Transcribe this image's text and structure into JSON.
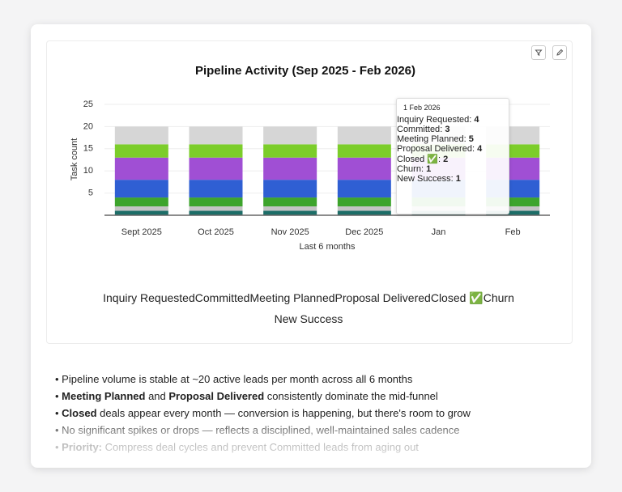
{
  "chart_data": {
    "type": "bar",
    "stacked": true,
    "title": "Pipeline Activity (Sep 2025 - Feb 2026)",
    "x_label": "Last 6 months",
    "y_label": "Task count",
    "categories": [
      "Sept 2025",
      "Oct 2025",
      "Nov 2025",
      "Dec 2025",
      "Jan",
      "Feb"
    ],
    "ylim": [
      0,
      25
    ],
    "yticks": [
      5,
      10,
      15,
      20,
      25
    ],
    "grid": true,
    "series": [
      {
        "name": "Inquiry Requested",
        "color": "#d6d6d6",
        "values": [
          4,
          4,
          4,
          4,
          4,
          4
        ]
      },
      {
        "name": "Committed",
        "color": "#7ccd2a",
        "values": [
          3,
          3,
          3,
          3,
          3,
          3
        ]
      },
      {
        "name": "Meeting Planned",
        "color": "#a04fd4",
        "values": [
          5,
          5,
          5,
          5,
          5,
          5
        ]
      },
      {
        "name": "Proposal Delivered",
        "color": "#2f5fd3",
        "values": [
          4,
          4,
          4,
          4,
          4,
          4
        ]
      },
      {
        "name": "Closed ✅",
        "color": "#3da42c",
        "values": [
          2,
          2,
          2,
          2,
          2,
          2
        ]
      },
      {
        "name": "Churn",
        "color": "#c4c4c4",
        "values": [
          1,
          1,
          1,
          1,
          1,
          1
        ]
      },
      {
        "name": "New Success",
        "color": "#1d6e68",
        "values": [
          1,
          1,
          1,
          1,
          1,
          1
        ]
      }
    ],
    "tooltip_title": "1 Feb 2026"
  },
  "notes": [
    [
      {
        "text": "Pipeline volume is stable at ~20 active leads per month across all 6 months",
        "bold": false
      }
    ],
    [
      {
        "text": "Meeting Planned",
        "bold": true
      },
      {
        "text": " and ",
        "bold": false
      },
      {
        "text": "Proposal Delivered",
        "bold": true
      },
      {
        "text": " consistently dominate the mid-funnel",
        "bold": false
      }
    ],
    [
      {
        "text": "Closed",
        "bold": true
      },
      {
        "text": " deals appear every month — conversion is happening, but there's room to grow",
        "bold": false
      }
    ],
    [
      {
        "text": "No significant spikes or drops — reflects a disciplined, well-maintained sales cadence",
        "bold": false
      }
    ],
    [
      {
        "text": "Priority:",
        "bold": true
      },
      {
        "text": " Compress deal cycles and prevent Committed leads from aging out",
        "bold": false
      }
    ]
  ]
}
